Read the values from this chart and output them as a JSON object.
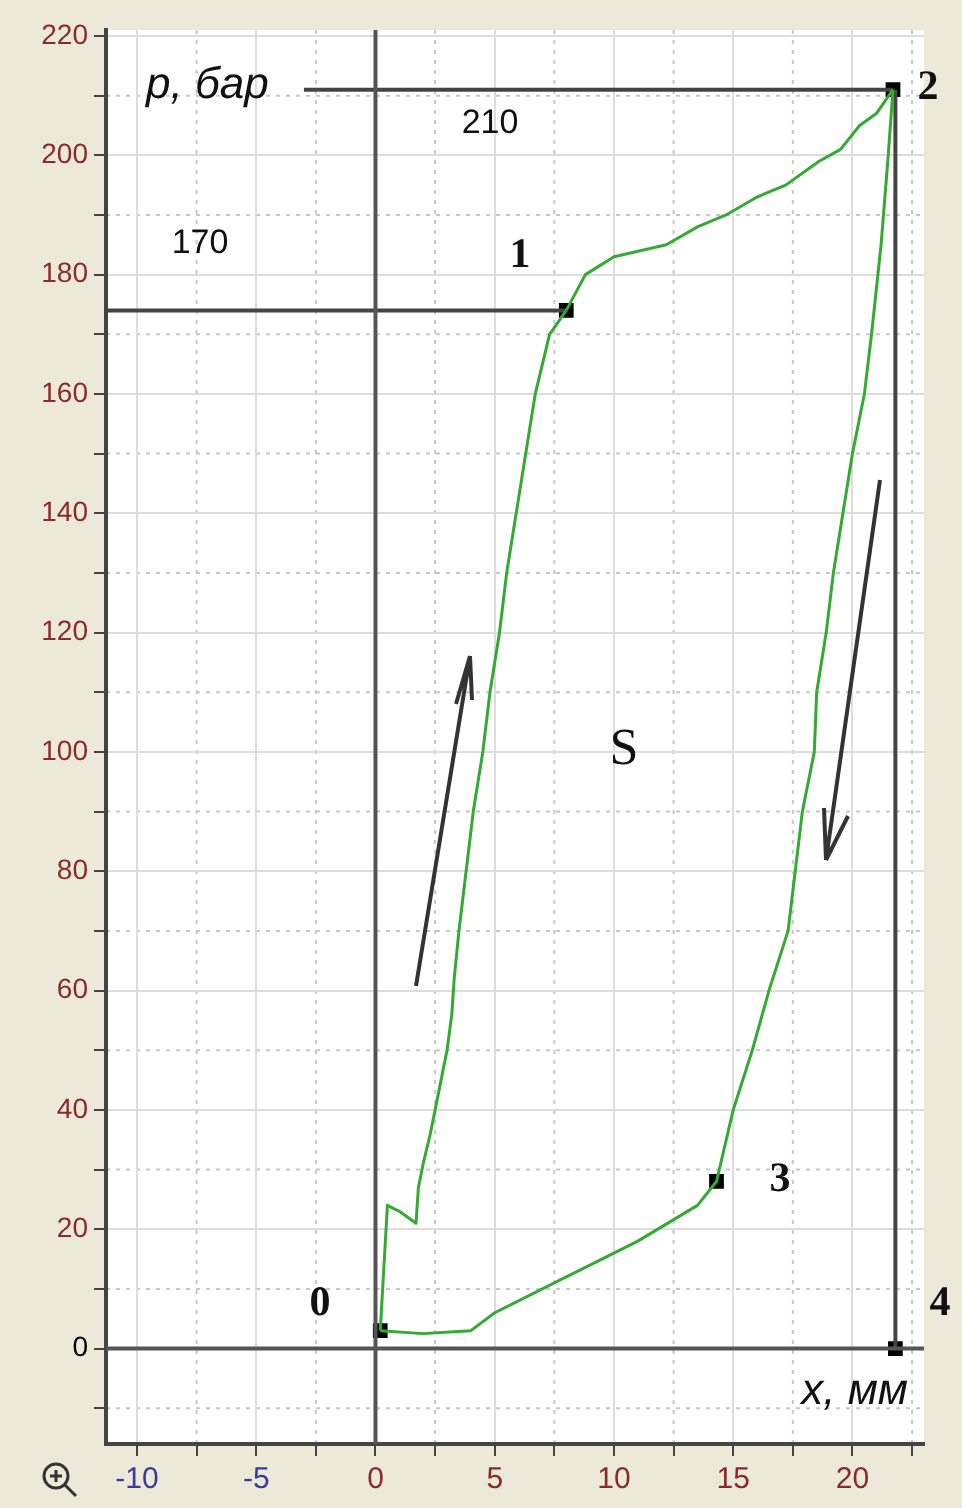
{
  "chart_data": {
    "type": "line",
    "xlabel": "x, мм",
    "ylabel": "p, бар",
    "xlim": [
      -11.3,
      23
    ],
    "ylim": [
      -16,
      221
    ],
    "xticks": [
      -10,
      {
        "value": -7.5,
        "label": null
      },
      -5,
      {
        "value": -2.5,
        "label": null
      },
      0,
      {
        "value": 2.5,
        "label": null
      },
      5,
      {
        "value": 7.5,
        "label": null
      },
      10,
      {
        "value": 12.5,
        "label": null
      },
      15,
      {
        "value": 17.5,
        "label": null
      },
      20,
      {
        "value": 22.5,
        "label": null
      }
    ],
    "yticks": [
      {
        "value": -10,
        "label": null
      },
      0,
      {
        "value": 10,
        "label": null
      },
      20,
      {
        "value": 30,
        "label": null
      },
      40,
      {
        "value": 50,
        "label": null
      },
      60,
      {
        "value": 70,
        "label": null
      },
      80,
      {
        "value": 90,
        "label": null
      },
      100,
      {
        "value": 110,
        "label": null
      },
      120,
      {
        "value": 130,
        "label": null
      },
      140,
      {
        "value": 150,
        "label": null
      },
      160,
      {
        "value": 170,
        "label": null
      },
      180,
      {
        "value": 190,
        "label": null
      },
      200,
      {
        "value": 210,
        "label": null
      },
      220
    ],
    "grid": true,
    "legend": false,
    "series": [
      {
        "color": "#555555",
        "x": [
          0,
          0
        ],
        "values": [
          -16,
          221
        ]
      },
      {
        "color": "#555555",
        "x": [
          -11.3,
          23
        ],
        "values": [
          0,
          0
        ]
      },
      {
        "color": "#33aa33",
        "x": [
          0.2,
          0.5,
          1.0,
          1.7,
          1.8,
          2.0,
          2.3,
          2.5,
          2.8,
          3.0,
          3.2,
          3.3,
          3.5,
          3.8,
          4.1,
          4.5,
          4.8,
          5.2,
          5.5,
          5.9,
          6.3,
          6.7,
          7.3,
          8.0
        ],
        "values": [
          3,
          24,
          23,
          21,
          27,
          31,
          36,
          40,
          46,
          50,
          56,
          62,
          70,
          80,
          90,
          100,
          110,
          120,
          130,
          140,
          150,
          160,
          170,
          174
        ]
      },
      {
        "color": "#33aa33",
        "x": [
          8.0,
          8.8,
          10,
          12.2,
          13.5,
          14.7,
          16,
          17.2,
          18.6,
          19.5,
          20.3,
          21.0,
          21.7
        ],
        "values": [
          174,
          180,
          183,
          185,
          188,
          190,
          193,
          195,
          199,
          201,
          205,
          207,
          211
        ]
      },
      {
        "color": "#33aa33",
        "x": [
          21.7,
          21.5,
          21.2,
          20.8,
          20.5,
          20.0,
          19.6,
          19.2,
          18.9,
          18.5,
          18.4,
          17.9,
          17.6,
          17.3,
          16.5,
          15.8,
          15.0,
          14.3,
          13.5,
          11,
          8,
          5,
          4,
          2,
          0.2
        ],
        "values": [
          211,
          200,
          185,
          170,
          160,
          150,
          140,
          130,
          120,
          110,
          100,
          90,
          80,
          70,
          60,
          50,
          40,
          28,
          24,
          18,
          12,
          6,
          3,
          2.5,
          3
        ]
      },
      {
        "color": "#444444",
        "x": [
          -3,
          21.7
        ],
        "values": [
          211,
          211
        ]
      },
      {
        "color": "#444444",
        "x": [
          -11.3,
          8
        ],
        "values": [
          174,
          174
        ]
      },
      {
        "color": "#444444",
        "x": [
          21.8,
          21.8
        ],
        "values": [
          0,
          211
        ]
      },
      {
        "type": "scatter",
        "color": "#000000",
        "marker": "square",
        "x": [
          0.2,
          8,
          21.7,
          14.3,
          21.8
        ],
        "values": [
          3,
          174,
          211,
          28,
          0
        ]
      }
    ],
    "annotations": [
      "0",
      "1",
      "2",
      "3",
      "4",
      "210",
      "170",
      "S"
    ]
  }
}
